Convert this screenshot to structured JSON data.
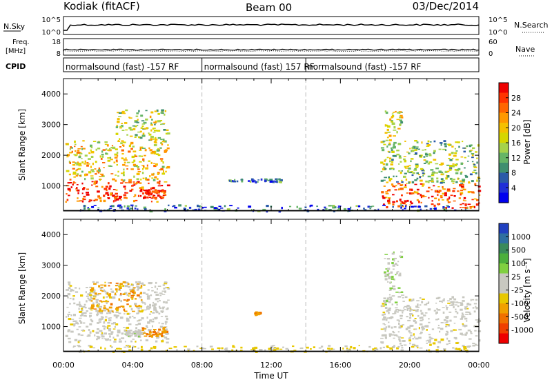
{
  "header": {
    "station": "Kodiak (fitACF)",
    "beam": "Beam 00",
    "date": "03/Dec/2014"
  },
  "strip_nsky": {
    "left_label": "N.Sky",
    "right_label": "N.Search",
    "left_ticks": [
      "10^5",
      "10^0"
    ],
    "right_ticks": [
      "10^5",
      "10^0"
    ]
  },
  "strip_freq": {
    "left_label_line1": "Freq.",
    "left_label_line2": "[MHz]",
    "right_label": "Nave",
    "left_ticks": [
      "18",
      "8"
    ],
    "right_ticks": [
      "60",
      "0"
    ]
  },
  "cpid": {
    "label": "CPID",
    "segments": [
      {
        "start_h": 0,
        "end_h": 8,
        "text": "normalsound (fast) -157 RF"
      },
      {
        "start_h": 8,
        "end_h": 14,
        "text": "normalsound (fast) 157 RF"
      },
      {
        "start_h": 14,
        "end_h": 24,
        "text": "normalsound (fast) -157 RF"
      }
    ]
  },
  "power_panel": {
    "ylabel": "Slant Range [km]",
    "colorbar_label": "Power [dB]",
    "colorbar_ticks": [
      "28",
      "24",
      "20",
      "16",
      "12",
      "8",
      "4"
    ],
    "colors": [
      "#ee0000",
      "#ff3300",
      "#ff6600",
      "#ff9900",
      "#f5c000",
      "#d6d600",
      "#a6d24a",
      "#66b566",
      "#3f8f6f",
      "#2a5aa8",
      "#1f2fd8",
      "#0000ee"
    ]
  },
  "velocity_panel": {
    "ylabel": "Slant Range [km]",
    "colorbar_label": "Velocity [m s⁻¹]",
    "colorbar_ticks": [
      "1000",
      "500",
      "100",
      "25",
      "-25",
      "-100",
      "-500",
      "-1000"
    ],
    "colors": [
      "#2040c0",
      "#2e6fa0",
      "#3a8a5a",
      "#4caf3c",
      "#80d040",
      "#c8c8c0",
      "#c8c8c0",
      "#e8c800",
      "#f0a000",
      "#f07000",
      "#f04000",
      "#ee0000"
    ]
  },
  "xaxis": {
    "label": "Time UT",
    "ticks": [
      "00:00",
      "04:00",
      "08:00",
      "12:00",
      "16:00",
      "20:00",
      "00:00"
    ]
  },
  "chart_data": [
    {
      "type": "heatmap",
      "title": "Power",
      "x_unit": "hours UT",
      "xlim": [
        0,
        24
      ],
      "ylim": [
        180,
        4500
      ],
      "ylabel": "Slant Range [km]",
      "yticks": [
        1000,
        2000,
        3000,
        4000
      ],
      "legend": "right colorbar",
      "colorbar": {
        "label": "Power [dB]",
        "ticks": [
          4,
          8,
          12,
          16,
          20,
          24,
          28
        ],
        "range": [
          0,
          30
        ]
      },
      "regions": [
        {
          "x": [
            0.1,
            6.0
          ],
          "y": [
            500,
            1200
          ],
          "value": 27
        },
        {
          "x": [
            0.1,
            6.0
          ],
          "y": [
            1200,
            2500
          ],
          "value": 18
        },
        {
          "x": [
            3.0,
            6.0
          ],
          "y": [
            2500,
            3500
          ],
          "value": 14
        },
        {
          "x": [
            4.5,
            5.9
          ],
          "y": [
            600,
            900
          ],
          "value": 29
        },
        {
          "x": [
            9.3,
            12.5
          ],
          "y": [
            1150,
            1250
          ],
          "value": 7
        },
        {
          "x": [
            18.3,
            24.0
          ],
          "y": [
            300,
            1100
          ],
          "value": 26
        },
        {
          "x": [
            18.3,
            24.0
          ],
          "y": [
            1100,
            2500
          ],
          "value": 13
        },
        {
          "x": [
            18.5,
            19.5
          ],
          "y": [
            2500,
            3500
          ],
          "value": 16
        },
        {
          "x": [
            0.5,
            23.5
          ],
          "y": [
            200,
            400
          ],
          "value": 6
        }
      ]
    },
    {
      "type": "heatmap",
      "title": "Velocity",
      "x_unit": "hours UT",
      "xlim": [
        0,
        24
      ],
      "ylim": [
        180,
        4500
      ],
      "ylabel": "Slant Range [km]",
      "yticks": [
        1000,
        2000,
        3000,
        4000
      ],
      "legend": "right colorbar",
      "colorbar": {
        "label": "Velocity [m s-1]",
        "ticks": [
          -1000,
          -500,
          -100,
          -25,
          25,
          100,
          500,
          1000
        ]
      },
      "regions": [
        {
          "x": [
            0.1,
            6.0
          ],
          "y": [
            500,
            2500
          ],
          "value": 0
        },
        {
          "x": [
            1.5,
            4.5
          ],
          "y": [
            1500,
            2500
          ],
          "value": -80
        },
        {
          "x": [
            4.5,
            5.9
          ],
          "y": [
            700,
            1000
          ],
          "value": -90
        },
        {
          "x": [
            3.5,
            4.5
          ],
          "y": [
            700,
            900
          ],
          "value": 80
        },
        {
          "x": [
            11.0,
            11.3
          ],
          "y": [
            1400,
            1500
          ],
          "value": -90
        },
        {
          "x": [
            18.3,
            24.0
          ],
          "y": [
            400,
            2000
          ],
          "value": 0
        },
        {
          "x": [
            18.5,
            19.5
          ],
          "y": [
            1500,
            3500
          ],
          "value": 90
        },
        {
          "x": [
            0.5,
            23.5
          ],
          "y": [
            200,
            400
          ],
          "value": -30
        }
      ]
    }
  ]
}
